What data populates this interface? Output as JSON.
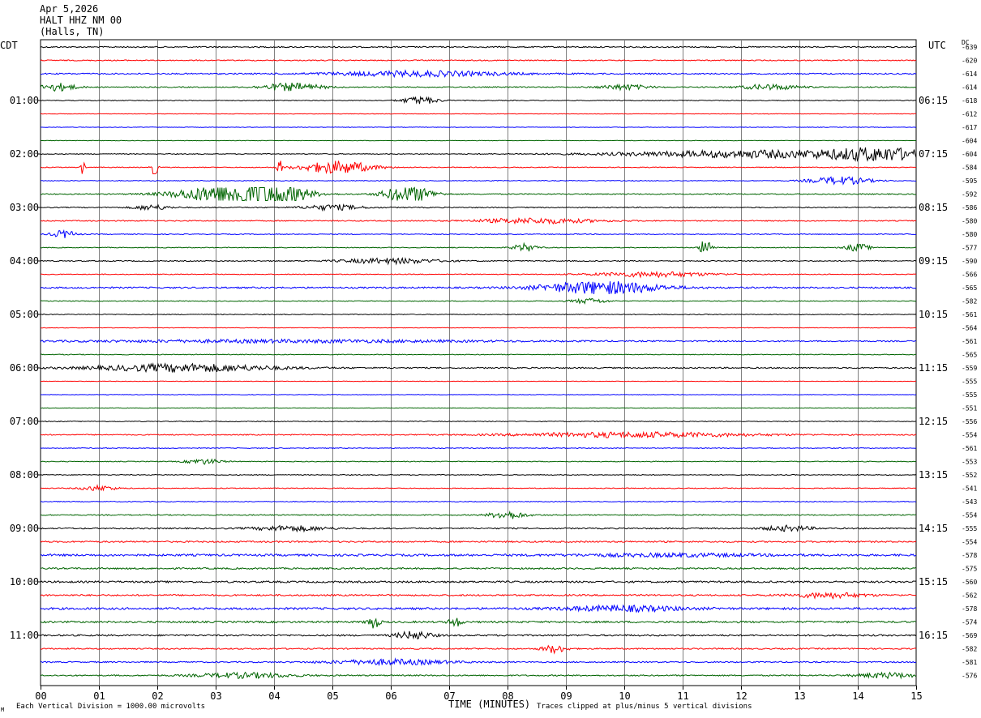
{
  "header": {
    "date": "Apr 5,2026",
    "station": "HALT HHZ NM 00",
    "location": "(Halls, TN)"
  },
  "left_tz": "CDT",
  "right_tz": "UTC",
  "dc_label": "DC",
  "footer": {
    "scale_note": "Each Vertical Division = 1000.00 microvolts",
    "clip_note": "Traces clipped at plus/minus 5 vertical divisions",
    "corner_mark": "M"
  },
  "colors": {
    "black": "#000000",
    "red": "#ff0000",
    "blue": "#0000ff",
    "green": "#006400",
    "grid": "#808080"
  },
  "chart_data": {
    "type": "line",
    "xlabel": "TIME (MINUTES)",
    "xlim": [
      0,
      15
    ],
    "x_ticks": [
      "00",
      "01",
      "02",
      "03",
      "04",
      "05",
      "06",
      "07",
      "08",
      "09",
      "10",
      "11",
      "12",
      "13",
      "14",
      "15"
    ],
    "grid": true,
    "trace_colors": [
      "black",
      "red",
      "blue",
      "green"
    ],
    "left_hour_labels": [
      "01:00",
      "02:00",
      "03:00",
      "04:00",
      "05:00",
      "06:00",
      "07:00",
      "08:00",
      "09:00",
      "10:00",
      "11:00"
    ],
    "right_hour_labels": [
      "06:15",
      "07:15",
      "08:15",
      "09:15",
      "10:15",
      "11:15",
      "12:15",
      "13:15",
      "14:15",
      "15:15",
      "16:15"
    ],
    "dc_offsets": [
      "-639",
      "-620",
      "-614",
      "-614",
      "-618",
      "-612",
      "-617",
      "-604",
      "-604",
      "-584",
      "-595",
      "-592",
      "-586",
      "-580",
      "-580",
      "-577",
      "-590",
      "-566",
      "-565",
      "-582",
      "-561",
      "-564",
      "-561",
      "-565",
      "-559",
      "-555",
      "-555",
      "-551",
      "-556",
      "-554",
      "-561",
      "-553",
      "-552",
      "-541",
      "-543",
      "-554",
      "-555",
      "-554",
      "-578",
      "-575",
      "-560",
      "-562",
      "-578",
      "-574",
      "-569",
      "-582",
      "-581",
      "-576"
    ],
    "traces": [
      {
        "noise": 0.5,
        "events": []
      },
      {
        "noise": 0.4,
        "events": []
      },
      {
        "noise": 0.5,
        "events": [
          [
            6.5,
            1.5,
            2
          ]
        ]
      },
      {
        "noise": 0.4,
        "events": [
          [
            0.3,
            0.3,
            3
          ],
          [
            4.3,
            0.5,
            3
          ],
          [
            10.0,
            0.4,
            2
          ],
          [
            12.5,
            0.5,
            2
          ]
        ]
      },
      {
        "noise": 0.3,
        "events": [
          [
            6.5,
            0.3,
            3
          ]
        ]
      },
      {
        "noise": 0.2,
        "events": []
      },
      {
        "noise": 0.2,
        "events": []
      },
      {
        "noise": 0.2,
        "events": []
      },
      {
        "noise": 0.3,
        "events": [
          [
            12.5,
            2.5,
            3
          ],
          [
            14.4,
            0.8,
            4
          ]
        ]
      },
      {
        "noise": 0.3,
        "events": [
          [
            0.72,
            0.03,
            7
          ],
          [
            1.95,
            0.05,
            8
          ],
          [
            5.1,
            0.6,
            5
          ],
          [
            4.1,
            0.04,
            6
          ]
        ]
      },
      {
        "noise": 0.3,
        "events": [
          [
            13.7,
            0.5,
            3
          ]
        ]
      },
      {
        "noise": 0.4,
        "events": [
          [
            3.3,
            0.9,
            8
          ],
          [
            4.0,
            0.5,
            9
          ],
          [
            6.3,
            0.4,
            7
          ]
        ]
      },
      {
        "noise": 0.4,
        "events": [
          [
            1.9,
            0.3,
            2
          ],
          [
            5.0,
            0.5,
            2
          ]
        ]
      },
      {
        "noise": 0.4,
        "events": [
          [
            8.5,
            1.0,
            2
          ]
        ]
      },
      {
        "noise": 0.3,
        "events": [
          [
            0.4,
            0.2,
            3
          ]
        ]
      },
      {
        "noise": 0.3,
        "events": [
          [
            8.3,
            0.2,
            3
          ],
          [
            11.4,
            0.1,
            7
          ],
          [
            14.0,
            0.2,
            3
          ]
        ]
      },
      {
        "noise": 0.4,
        "events": [
          [
            6.0,
            0.8,
            2
          ]
        ]
      },
      {
        "noise": 0.3,
        "events": [
          [
            10.5,
            1.0,
            2
          ]
        ]
      },
      {
        "noise": 0.6,
        "events": [
          [
            9.6,
            1.0,
            5
          ]
        ]
      },
      {
        "noise": 0.3,
        "events": [
          [
            9.4,
            0.3,
            2
          ]
        ]
      },
      {
        "noise": 0.3,
        "events": []
      },
      {
        "noise": 0.2,
        "events": []
      },
      {
        "noise": 0.5,
        "events": [
          [
            4.3,
            3.5,
            1
          ]
        ]
      },
      {
        "noise": 0.3,
        "events": []
      },
      {
        "noise": 0.5,
        "events": [
          [
            2.5,
            1.5,
            3
          ]
        ]
      },
      {
        "noise": 0.2,
        "events": []
      },
      {
        "noise": 0.2,
        "events": []
      },
      {
        "noise": 0.2,
        "events": []
      },
      {
        "noise": 0.3,
        "events": []
      },
      {
        "noise": 0.4,
        "events": [
          [
            10.2,
            2.0,
            2
          ]
        ]
      },
      {
        "noise": 0.3,
        "events": []
      },
      {
        "noise": 0.3,
        "events": [
          [
            2.8,
            0.3,
            2
          ]
        ]
      },
      {
        "noise": 0.3,
        "events": []
      },
      {
        "noise": 0.3,
        "events": [
          [
            1.0,
            0.3,
            2
          ]
        ]
      },
      {
        "noise": 0.3,
        "events": []
      },
      {
        "noise": 0.4,
        "events": [
          [
            8.0,
            0.3,
            3
          ]
        ]
      },
      {
        "noise": 0.5,
        "events": [
          [
            4.3,
            0.6,
            2
          ],
          [
            12.8,
            0.4,
            2
          ]
        ]
      },
      {
        "noise": 0.6,
        "events": []
      },
      {
        "noise": 0.8,
        "events": [
          [
            10.8,
            1.5,
            1
          ]
        ]
      },
      {
        "noise": 0.6,
        "events": []
      },
      {
        "noise": 0.7,
        "events": []
      },
      {
        "noise": 0.6,
        "events": [
          [
            13.5,
            0.6,
            2
          ]
        ]
      },
      {
        "noise": 0.8,
        "events": [
          [
            10.0,
            1.0,
            2
          ]
        ]
      },
      {
        "noise": 0.7,
        "events": [
          [
            5.7,
            0.1,
            5
          ],
          [
            7.1,
            0.1,
            4
          ]
        ]
      },
      {
        "noise": 0.6,
        "events": [
          [
            6.4,
            0.3,
            3
          ]
        ]
      },
      {
        "noise": 0.5,
        "events": [
          [
            8.8,
            0.2,
            3
          ]
        ]
      },
      {
        "noise": 0.5,
        "events": [
          [
            6.0,
            1.0,
            2
          ]
        ]
      },
      {
        "noise": 0.5,
        "events": [
          [
            3.5,
            0.8,
            2
          ],
          [
            14.5,
            0.5,
            2
          ]
        ]
      }
    ]
  }
}
